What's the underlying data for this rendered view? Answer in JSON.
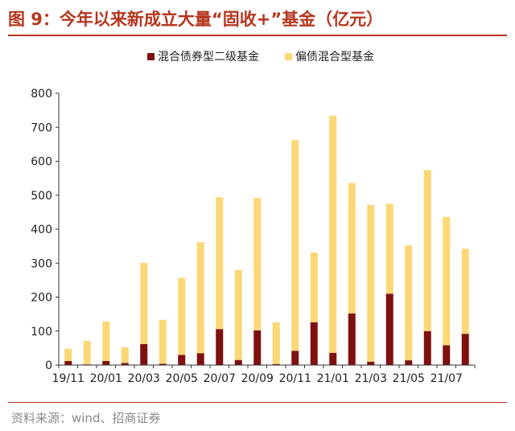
{
  "title": "图 9：今年以来新成立大量“固收+”基金（亿元）",
  "source": "资料来源：wind、招商证券",
  "colors": {
    "accent": "#b5361e",
    "secondary_bond": "#7f1010",
    "partial_debt": "#fcd776",
    "axis": "#333333"
  },
  "chart_data": {
    "type": "bar",
    "stacked": true,
    "ylim": [
      0,
      800
    ],
    "yticks": [
      0,
      100,
      200,
      300,
      400,
      500,
      600,
      700,
      800
    ],
    "categories": [
      "19/11",
      "19/12",
      "20/01",
      "20/02",
      "20/03",
      "20/04",
      "20/05",
      "20/06",
      "20/07",
      "20/08",
      "20/09",
      "20/10",
      "20/11",
      "20/12",
      "21/01",
      "21/02",
      "21/03",
      "21/04",
      "21/05",
      "21/06",
      "21/07",
      "21/08"
    ],
    "xtick_labels": [
      "19/11",
      "",
      "20/01",
      "",
      "20/03",
      "",
      "20/05",
      "",
      "20/07",
      "",
      "20/09",
      "",
      "20/11",
      "",
      "21/01",
      "",
      "21/03",
      "",
      "21/05",
      "",
      "21/07",
      ""
    ],
    "legend_position": "top-center",
    "series": [
      {
        "name": "混合债券型二级基金",
        "color": "#7f1010",
        "values": [
          12,
          2,
          12,
          6,
          62,
          4,
          30,
          35,
          106,
          15,
          102,
          3,
          42,
          126,
          36,
          152,
          10,
          210,
          14,
          100,
          58,
          92
        ]
      },
      {
        "name": "偏债混合型基金",
        "color": "#fcd776",
        "values": [
          36,
          69,
          116,
          46,
          239,
          129,
          226,
          327,
          388,
          265,
          390,
          123,
          620,
          205,
          698,
          384,
          461,
          265,
          338,
          474,
          378,
          250
        ]
      }
    ]
  }
}
